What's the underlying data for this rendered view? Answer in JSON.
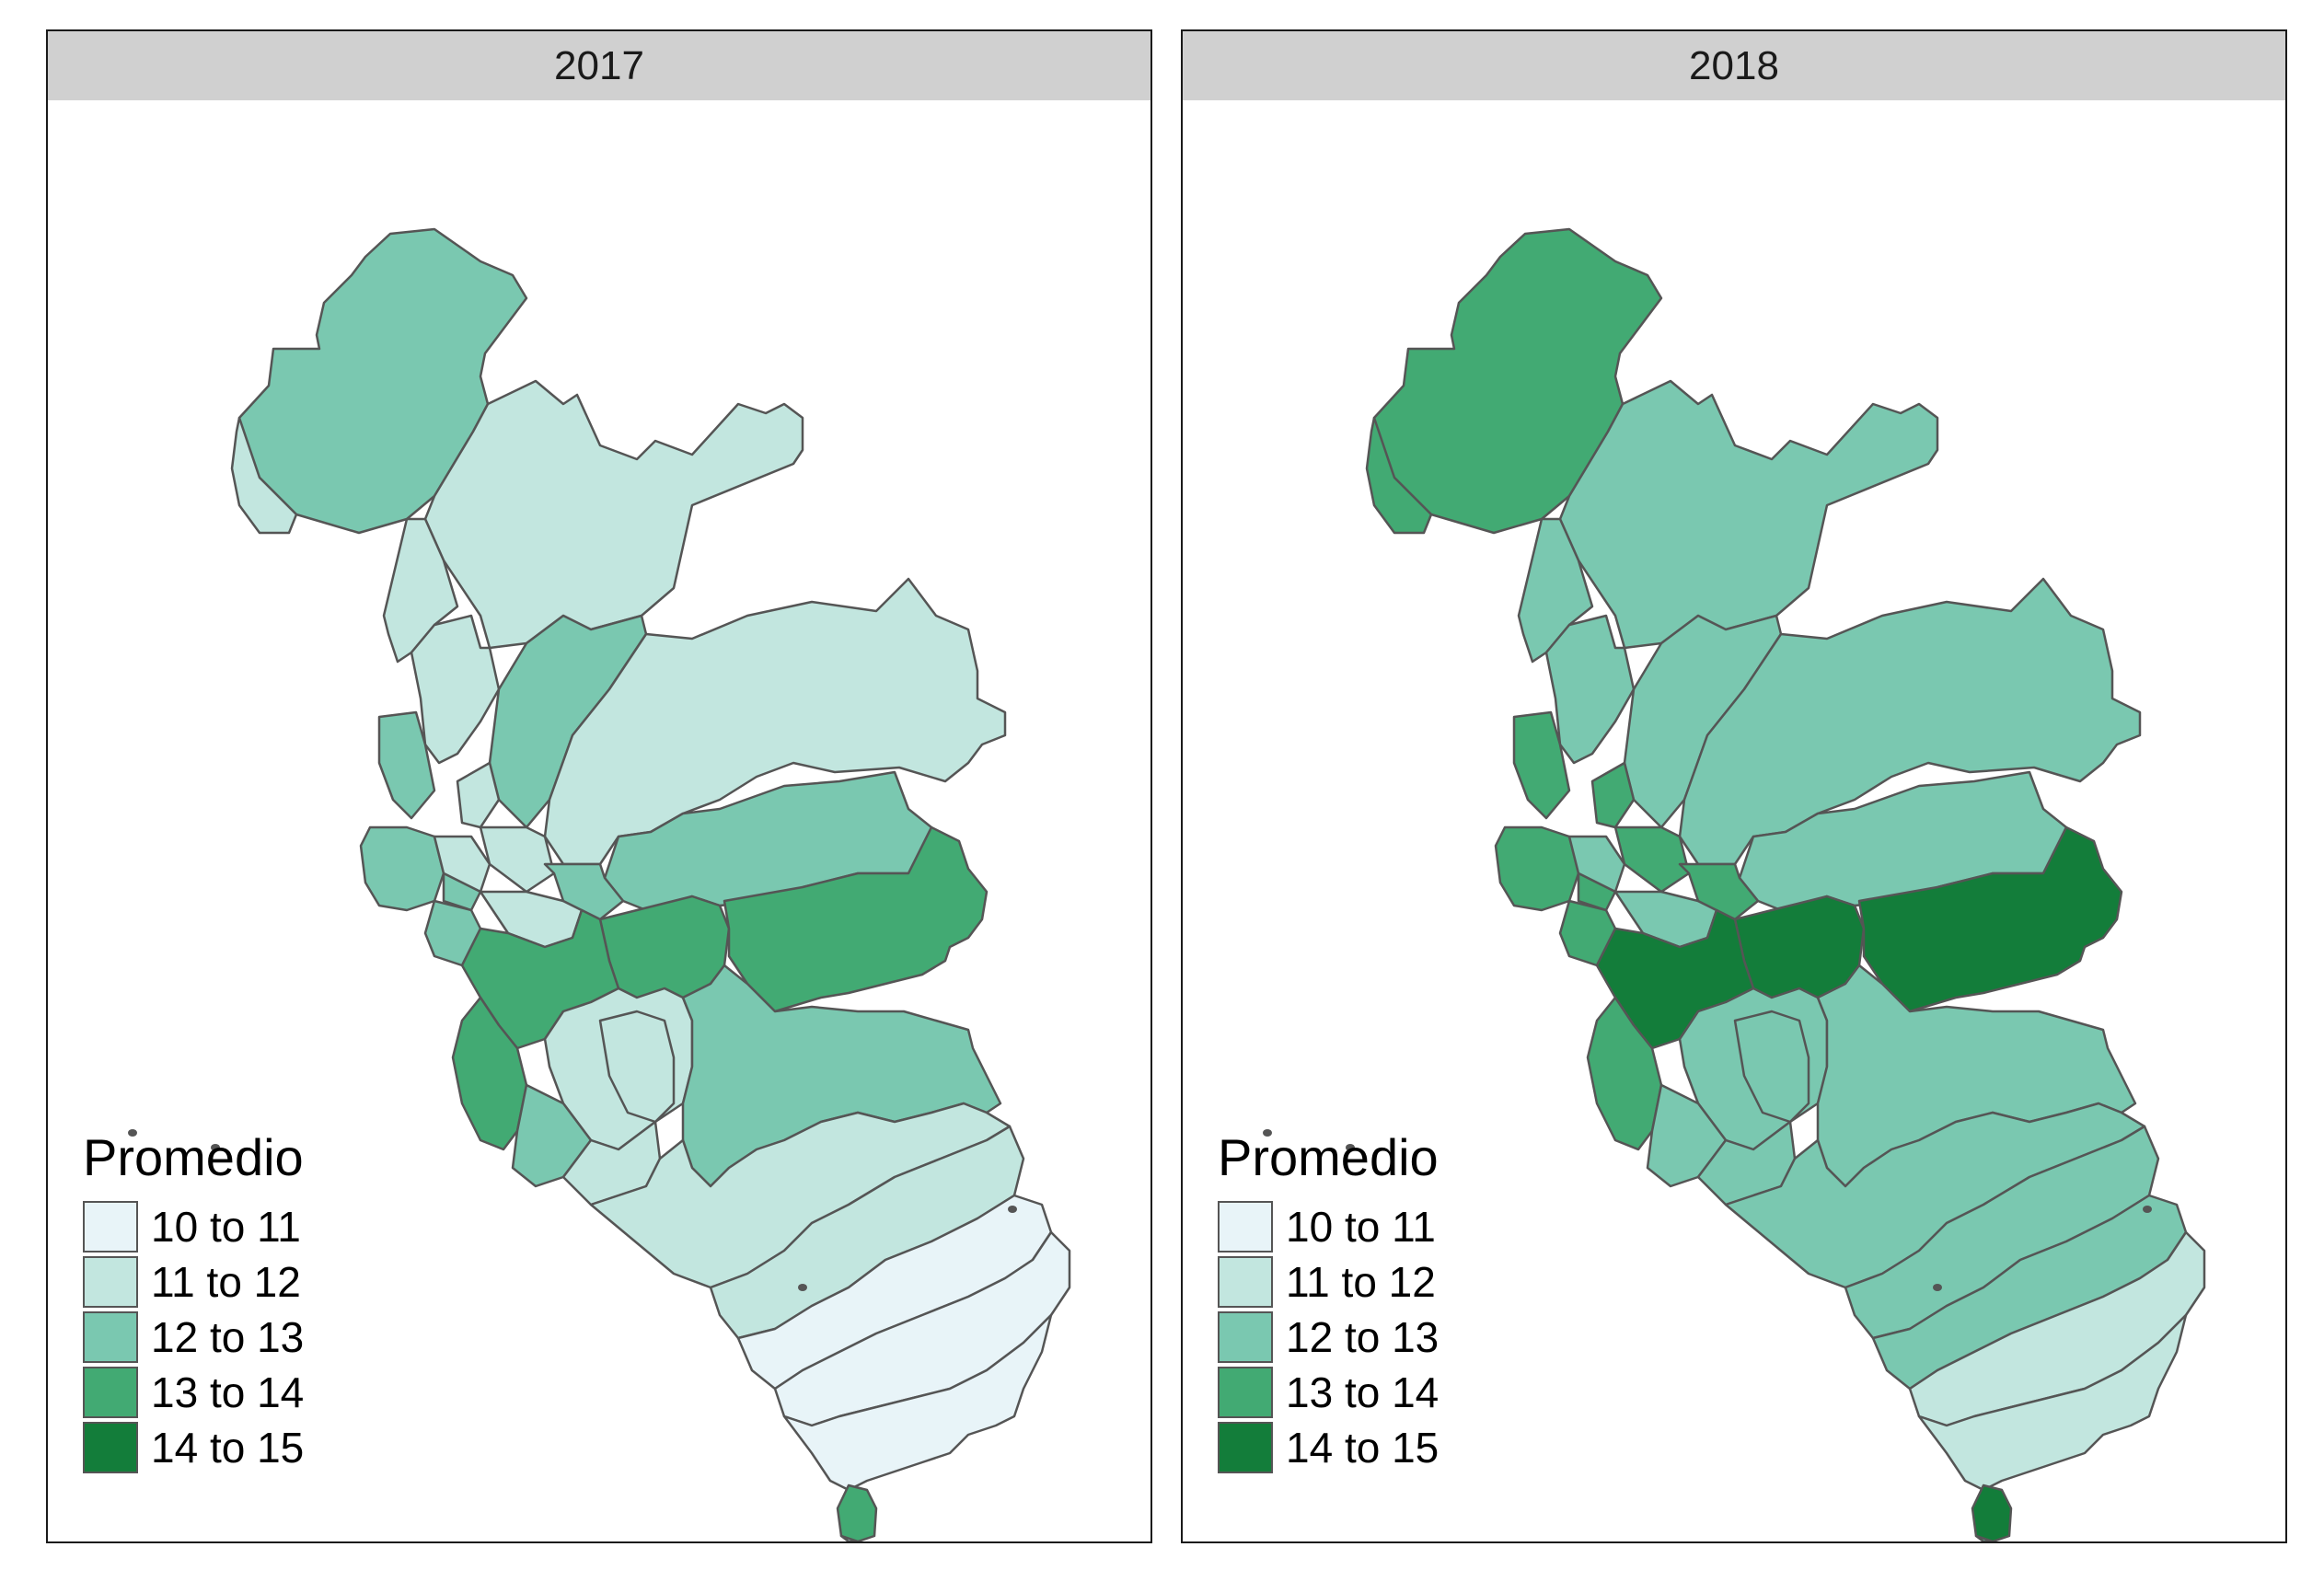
{
  "colors": {
    "outline": "#555555",
    "strip_bg": "#d0d0d0",
    "classes": [
      "#e8f4f8",
      "#c2e6df",
      "#7ac8b0",
      "#42aa73",
      "#137d3a"
    ]
  },
  "legend": {
    "title": "Promedio",
    "items": [
      "10 to 11",
      "11 to 12",
      "12 to 13",
      "13 to 14",
      "14 to 15"
    ]
  },
  "panels": [
    {
      "year": "2017",
      "region_classes": {
        "north": 2,
        "nw_coast": 1,
        "north_central": 1,
        "west_strip": 1,
        "mid_west": 1,
        "spine": 2,
        "coast_a": 2,
        "central_north": 1,
        "east_upper": 1,
        "east_mid": 2,
        "lima_west": 2,
        "lima_1": 1,
        "lima_2": 1,
        "lima_3": 2,
        "lima_4": 1,
        "lima_5": 2,
        "lima_6": 2,
        "cent_a": 3,
        "big_east": 3,
        "coast_sw": 3,
        "coast_sw2": 3,
        "south_mid": 1,
        "south_a": 1,
        "south_west": 2,
        "south_inner": 1,
        "south_east": 2,
        "band_1": 1,
        "band_2": 1,
        "band_3": 0,
        "band_4": 0,
        "band_5": 0,
        "tail_knob": 3,
        "tail": 1
      }
    },
    {
      "year": "2018",
      "region_classes": {
        "north": 3,
        "nw_coast": 3,
        "north_central": 2,
        "west_strip": 2,
        "mid_west": 2,
        "spine": 2,
        "coast_a": 3,
        "central_north": 3,
        "east_upper": 2,
        "east_mid": 2,
        "lima_west": 3,
        "lima_1": 2,
        "lima_2": 3,
        "lima_3": 3,
        "lima_4": 2,
        "lima_5": 3,
        "lima_6": 3,
        "cent_a": 4,
        "big_east": 4,
        "coast_sw": 4,
        "coast_sw2": 3,
        "south_mid": 2,
        "south_a": 2,
        "south_west": 2,
        "south_inner": 2,
        "south_east": 2,
        "band_1": 2,
        "band_2": 2,
        "band_3": 2,
        "band_4": 1,
        "band_5": 1,
        "tail_knob": 4,
        "tail": 2
      }
    }
  ]
}
